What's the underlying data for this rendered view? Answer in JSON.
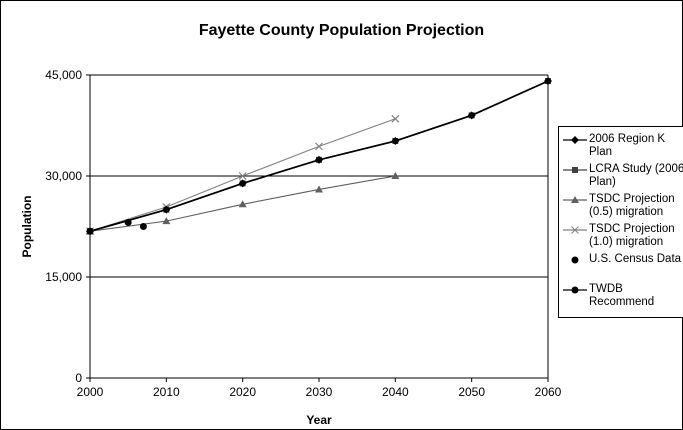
{
  "chart_data": {
    "type": "line",
    "title": "Fayette County Population Projection",
    "xlabel": "Year",
    "ylabel": "Population",
    "xlim": [
      2000,
      2060
    ],
    "ylim": [
      0,
      45000
    ],
    "x_ticks": [
      2000,
      2010,
      2020,
      2030,
      2040,
      2050,
      2060
    ],
    "y_ticks": [
      0,
      15000,
      30000,
      45000
    ],
    "y_tick_labels": [
      "0",
      "15,000",
      "30,000",
      "45,000"
    ],
    "grid": "horizontal",
    "legend_position": "right",
    "series": [
      {
        "name": "2006 Region K Plan",
        "marker": "diamond",
        "color": "#000000",
        "x": [
          2000,
          2010,
          2020,
          2030,
          2040,
          2050,
          2060
        ],
        "y": [
          21800,
          25000,
          28900,
          32400,
          35200,
          39000,
          44100
        ]
      },
      {
        "name": "LCRA Study (2006 Plan)",
        "marker": "square",
        "color": "#404040",
        "x": [
          2000,
          2010,
          2020,
          2030,
          2040,
          2050,
          2060
        ],
        "y": [
          21800,
          25000,
          28900,
          32400,
          35200,
          39000,
          44100
        ]
      },
      {
        "name": "TSDC Projection (0.5) migration",
        "marker": "triangle",
        "color": "#606060",
        "x": [
          2000,
          2010,
          2020,
          2030,
          2040
        ],
        "y": [
          21800,
          23300,
          25800,
          28000,
          30000
        ]
      },
      {
        "name": "TSDC Projection (1.0) migration",
        "marker": "x",
        "color": "#808080",
        "x": [
          2000,
          2010,
          2020,
          2030,
          2040
        ],
        "y": [
          21800,
          25400,
          30000,
          34400,
          38500
        ]
      },
      {
        "name": "U.S. Census Data",
        "marker": "circle",
        "color": "#000000",
        "line": false,
        "x": [
          2000,
          2005,
          2007
        ],
        "y": [
          21800,
          23100,
          22500
        ]
      },
      {
        "name": "TWDB Recommend",
        "marker": "dot",
        "color": "#000000",
        "x": [
          2000,
          2010,
          2020,
          2030,
          2040,
          2050,
          2060
        ],
        "y": [
          21800,
          25000,
          28900,
          32400,
          35200,
          39000,
          44100
        ]
      }
    ],
    "legend_lines": [
      [
        "2006 Region K",
        "Plan"
      ],
      [
        "LCRA Study",
        "(2006 Plan)"
      ],
      [
        "TSDC Projection",
        "(0.5) migration"
      ],
      [
        "TSDC Projection",
        "(1.0) migration"
      ],
      [
        "U.S. Census",
        "Data"
      ],
      [
        "TWDB",
        "Recommend"
      ]
    ]
  }
}
